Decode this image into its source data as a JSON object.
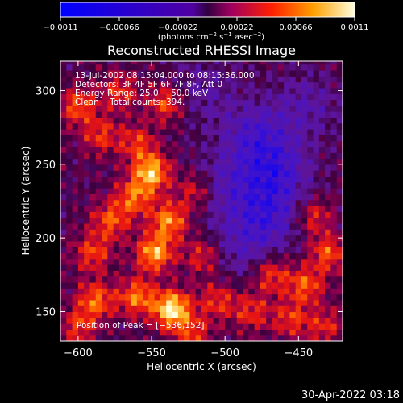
{
  "chart_data": {
    "type": "heatmap",
    "title": "Reconstructed RHESSI Image",
    "xlabel": "Heliocentric X (arcsec)",
    "ylabel": "Heliocentric Y (arcsec)",
    "xlim": [
      -612,
      -420
    ],
    "ylim": [
      130,
      320
    ],
    "xticks": [
      -600,
      -550,
      -500,
      -450
    ],
    "xtick_labels": [
      "−600",
      "−550",
      "−500",
      "−450"
    ],
    "yticks": [
      150,
      200,
      250,
      300
    ],
    "ytick_labels": [
      "150",
      "200",
      "250",
      "300"
    ],
    "colorbar": {
      "range": [
        -0.0011,
        0.0011
      ],
      "ticks": [
        -0.0011,
        -0.00066,
        -0.00022,
        0.00022,
        0.00066,
        0.0011
      ],
      "tick_labels": [
        "−0.0011",
        "−0.00066",
        "−0.00022",
        "0.00022",
        "0.00066",
        "0.0011"
      ],
      "units_text": "(photons cm",
      "units_exp1": "−2",
      "units_mid": " s",
      "units_exp2": "−1",
      "units_mid2": " asec",
      "units_exp3": "−2",
      "units_end": ")"
    },
    "annotations": [
      "13-Jul-2002 08:15:04.000 to 08:15:36.000",
      "Detectors: 3F 4F 5F 6F 7F 8F, Att 0",
      "Energy Range: 25.0 − 50.0 keV",
      "Clean    Total counts: 394."
    ],
    "peak_label": "Position of Peak = [−536,152]",
    "peak": [
      -536,
      152
    ],
    "bright_regions": [
      {
        "x": -600,
        "y": 290,
        "v": 0.55
      },
      {
        "x": -572,
        "y": 300,
        "v": 0.45
      },
      {
        "x": -585,
        "y": 270,
        "v": 0.45
      },
      {
        "x": -540,
        "y": 292,
        "v": 0.55
      },
      {
        "x": -560,
        "y": 265,
        "v": 0.45
      },
      {
        "x": -550,
        "y": 245,
        "v": 0.85
      },
      {
        "x": -562,
        "y": 228,
        "v": 0.6
      },
      {
        "x": -578,
        "y": 212,
        "v": 0.55
      },
      {
        "x": -538,
        "y": 212,
        "v": 0.7
      },
      {
        "x": -548,
        "y": 190,
        "v": 0.8
      },
      {
        "x": -590,
        "y": 190,
        "v": 0.5
      },
      {
        "x": -520,
        "y": 232,
        "v": 0.45
      },
      {
        "x": -515,
        "y": 188,
        "v": 0.45
      },
      {
        "x": -536,
        "y": 152,
        "v": 1.0
      },
      {
        "x": -560,
        "y": 160,
        "v": 0.65
      },
      {
        "x": -588,
        "y": 158,
        "v": 0.6
      },
      {
        "x": -505,
        "y": 158,
        "v": 0.45
      },
      {
        "x": -522,
        "y": 135,
        "v": 0.45
      },
      {
        "x": -600,
        "y": 140,
        "v": 0.45
      },
      {
        "x": -468,
        "y": 175,
        "v": 0.5
      },
      {
        "x": -445,
        "y": 168,
        "v": 0.55
      },
      {
        "x": -430,
        "y": 190,
        "v": 0.55
      },
      {
        "x": -440,
        "y": 215,
        "v": 0.45
      },
      {
        "x": -455,
        "y": 145,
        "v": 0.45
      },
      {
        "x": -482,
        "y": 150,
        "v": 0.45
      },
      {
        "x": -432,
        "y": 140,
        "v": 0.4
      }
    ],
    "dark_regions": [
      {
        "x": -480,
        "y": 270,
        "v": -0.45
      },
      {
        "x": -465,
        "y": 245,
        "v": -0.5
      },
      {
        "x": -470,
        "y": 215,
        "v": -0.45
      },
      {
        "x": -500,
        "y": 235,
        "v": -0.35
      },
      {
        "x": -445,
        "y": 290,
        "v": -0.3
      },
      {
        "x": -490,
        "y": 195,
        "v": -0.3
      },
      {
        "x": -515,
        "y": 300,
        "v": -0.25
      }
    ]
  },
  "timestamp": "30-Apr-2022 03:18"
}
